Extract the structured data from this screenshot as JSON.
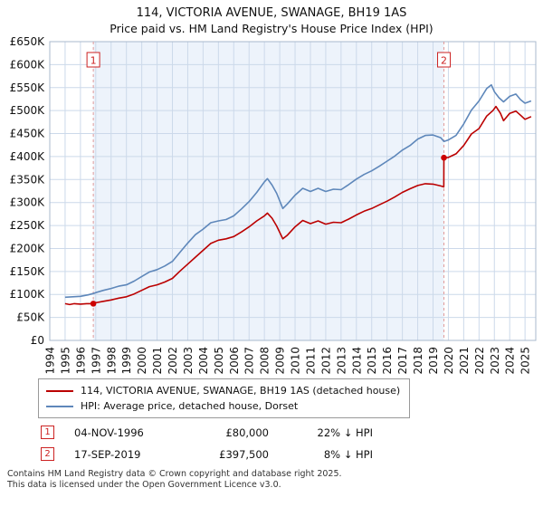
{
  "title": {
    "line1": "114, VICTORIA AVENUE, SWANAGE, BH19 1AS",
    "line2": "Price paid vs. HM Land Registry's House Price Index (HPI)"
  },
  "chart_data": {
    "type": "line",
    "x_range": [
      1994,
      2025.7
    ],
    "ylim": [
      0,
      650000
    ],
    "y_unit": "GBP_thousands",
    "y_tick_step": 50000,
    "y_tick_labels": [
      "£0",
      "£50K",
      "£100K",
      "£150K",
      "£200K",
      "£250K",
      "£300K",
      "£350K",
      "£400K",
      "£450K",
      "£500K",
      "£550K",
      "£600K",
      "£650K"
    ],
    "x_ticks": [
      1994,
      1995,
      1996,
      1997,
      1998,
      1999,
      2000,
      2001,
      2002,
      2003,
      2004,
      2005,
      2006,
      2007,
      2008,
      2009,
      2010,
      2011,
      2012,
      2013,
      2014,
      2015,
      2016,
      2017,
      2018,
      2019,
      2020,
      2021,
      2022,
      2023,
      2024,
      2025
    ],
    "grid": true,
    "legend_position": "bottom",
    "shaded_region": [
      1996.84,
      2019.71
    ],
    "colors": {
      "grid": "#ccd9ea",
      "frame": "#a8b8cc",
      "shade": "#edf3fb",
      "sale_line": "#e09999",
      "sale_box": "#cc2222",
      "sale_dot": "#cc0000"
    },
    "series": [
      {
        "name": "114, VICTORIA AVENUE, SWANAGE, BH19 1AS (detached house)",
        "color": "#bb0000",
        "points": [
          [
            1995.0,
            80
          ],
          [
            1995.3,
            78
          ],
          [
            1995.6,
            80
          ],
          [
            1996.0,
            79
          ],
          [
            1996.4,
            80
          ],
          [
            1996.84,
            80
          ],
          [
            1997.0,
            82
          ],
          [
            1997.5,
            85
          ],
          [
            1998.0,
            88
          ],
          [
            1998.5,
            92
          ],
          [
            1999.0,
            95
          ],
          [
            1999.5,
            101
          ],
          [
            2000.0,
            109
          ],
          [
            2000.5,
            117
          ],
          [
            2001.0,
            121
          ],
          [
            2001.5,
            127
          ],
          [
            2002.0,
            135
          ],
          [
            2002.5,
            151
          ],
          [
            2003.0,
            166
          ],
          [
            2003.5,
            181
          ],
          [
            2004.0,
            196
          ],
          [
            2004.5,
            211
          ],
          [
            2005.0,
            218
          ],
          [
            2005.5,
            221
          ],
          [
            2006.0,
            226
          ],
          [
            2006.5,
            236
          ],
          [
            2007.0,
            247
          ],
          [
            2007.5,
            260
          ],
          [
            2008.0,
            271
          ],
          [
            2008.2,
            277
          ],
          [
            2008.5,
            266
          ],
          [
            2008.8,
            249
          ],
          [
            2009.2,
            221
          ],
          [
            2009.5,
            229
          ],
          [
            2010.0,
            247
          ],
          [
            2010.5,
            261
          ],
          [
            2011.0,
            254
          ],
          [
            2011.5,
            260
          ],
          [
            2012.0,
            253
          ],
          [
            2012.5,
            257
          ],
          [
            2013.0,
            256
          ],
          [
            2013.5,
            264
          ],
          [
            2014.0,
            273
          ],
          [
            2014.5,
            281
          ],
          [
            2015.0,
            287
          ],
          [
            2015.5,
            295
          ],
          [
            2016.0,
            303
          ],
          [
            2016.5,
            312
          ],
          [
            2017.0,
            322
          ],
          [
            2017.5,
            330
          ],
          [
            2018.0,
            337
          ],
          [
            2018.5,
            341
          ],
          [
            2019.0,
            340
          ],
          [
            2019.5,
            336
          ],
          [
            2019.7,
            334
          ],
          [
            2019.71,
            397.5
          ],
          [
            2020.0,
            398
          ],
          [
            2020.5,
            406
          ],
          [
            2021.0,
            424
          ],
          [
            2021.5,
            449
          ],
          [
            2022.0,
            461
          ],
          [
            2022.5,
            488
          ],
          [
            2022.9,
            500
          ],
          [
            2023.1,
            509
          ],
          [
            2023.4,
            494
          ],
          [
            2023.6,
            478
          ],
          [
            2024.0,
            494
          ],
          [
            2024.4,
            499
          ],
          [
            2024.7,
            490
          ],
          [
            2025.0,
            481
          ],
          [
            2025.4,
            487
          ]
        ]
      },
      {
        "name": "HPI: Average price, detached house, Dorset",
        "color": "#5e87ba",
        "points": [
          [
            1995.0,
            94
          ],
          [
            1995.5,
            95
          ],
          [
            1996.0,
            96
          ],
          [
            1996.5,
            99
          ],
          [
            1996.84,
            102
          ],
          [
            1997.0,
            104
          ],
          [
            1997.5,
            109
          ],
          [
            1998.0,
            113
          ],
          [
            1998.5,
            118
          ],
          [
            1999.0,
            121
          ],
          [
            1999.5,
            129
          ],
          [
            2000.0,
            139
          ],
          [
            2000.5,
            149
          ],
          [
            2001.0,
            154
          ],
          [
            2001.5,
            162
          ],
          [
            2002.0,
            172
          ],
          [
            2002.5,
            192
          ],
          [
            2003.0,
            212
          ],
          [
            2003.5,
            230
          ],
          [
            2004.0,
            242
          ],
          [
            2004.5,
            256
          ],
          [
            2005.0,
            260
          ],
          [
            2005.5,
            263
          ],
          [
            2006.0,
            271
          ],
          [
            2006.5,
            286
          ],
          [
            2007.0,
            302
          ],
          [
            2007.5,
            322
          ],
          [
            2008.0,
            345
          ],
          [
            2008.2,
            352
          ],
          [
            2008.5,
            338
          ],
          [
            2008.8,
            320
          ],
          [
            2009.2,
            287
          ],
          [
            2009.5,
            297
          ],
          [
            2010.0,
            316
          ],
          [
            2010.5,
            331
          ],
          [
            2011.0,
            324
          ],
          [
            2011.5,
            331
          ],
          [
            2012.0,
            324
          ],
          [
            2012.5,
            329
          ],
          [
            2013.0,
            328
          ],
          [
            2013.5,
            339
          ],
          [
            2014.0,
            351
          ],
          [
            2014.5,
            361
          ],
          [
            2015.0,
            369
          ],
          [
            2015.5,
            379
          ],
          [
            2016.0,
            390
          ],
          [
            2016.5,
            401
          ],
          [
            2017.0,
            414
          ],
          [
            2017.5,
            424
          ],
          [
            2018.0,
            438
          ],
          [
            2018.5,
            446
          ],
          [
            2019.0,
            447
          ],
          [
            2019.5,
            441
          ],
          [
            2019.71,
            433
          ],
          [
            2020.0,
            436
          ],
          [
            2020.5,
            446
          ],
          [
            2021.0,
            471
          ],
          [
            2021.5,
            501
          ],
          [
            2022.0,
            521
          ],
          [
            2022.5,
            548
          ],
          [
            2022.8,
            556
          ],
          [
            2023.0,
            541
          ],
          [
            2023.3,
            528
          ],
          [
            2023.6,
            519
          ],
          [
            2024.0,
            531
          ],
          [
            2024.4,
            536
          ],
          [
            2024.7,
            524
          ],
          [
            2025.0,
            516
          ],
          [
            2025.4,
            521
          ]
        ]
      }
    ],
    "markers": [
      {
        "label": "1",
        "x": 1996.84,
        "y": 80
      },
      {
        "label": "2",
        "x": 2019.71,
        "y": 397.5
      }
    ]
  },
  "annotations": [
    {
      "num": "1",
      "date": "04-NOV-1996",
      "price": "£80,000",
      "delta": "22% ↓ HPI"
    },
    {
      "num": "2",
      "date": "17-SEP-2019",
      "price": "£397,500",
      "delta": "8% ↓ HPI"
    }
  ],
  "footer": {
    "line1": "Contains HM Land Registry data © Crown copyright and database right 2025.",
    "line2": "This data is licensed under the Open Government Licence v3.0."
  }
}
